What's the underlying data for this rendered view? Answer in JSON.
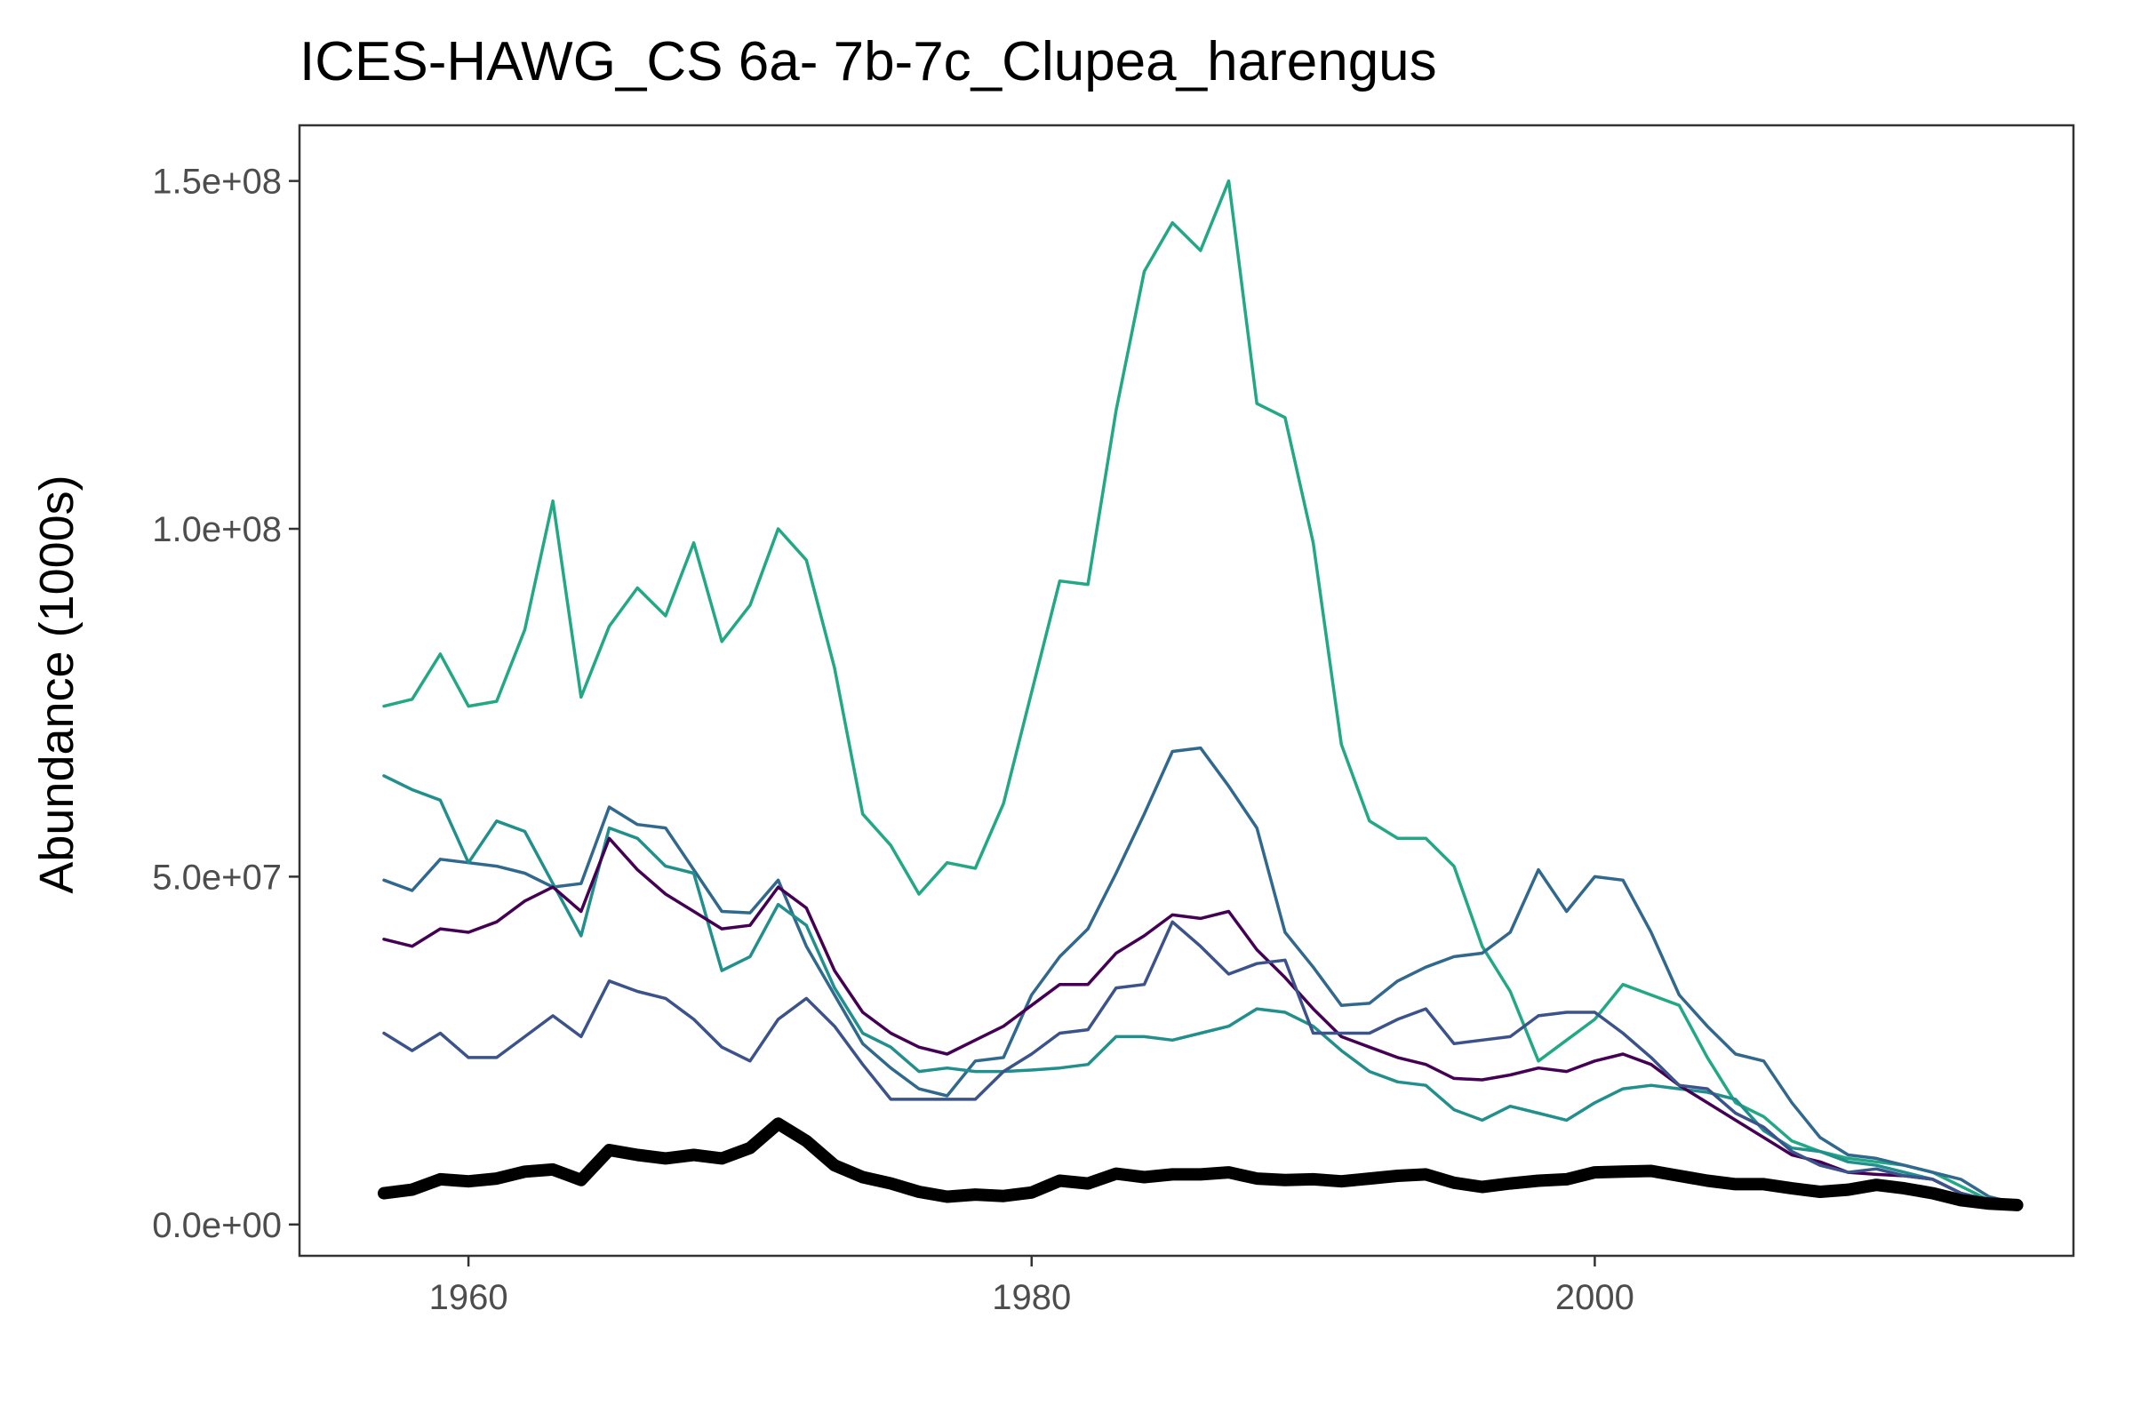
{
  "chart_data": {
    "type": "line",
    "title": "ICES-HAWG_CS 6a- 7b-7c_Clupea_harengus",
    "xlabel": "",
    "ylabel": "Abundance (1000s)",
    "xlim": [
      1954,
      2017
    ],
    "ylim": [
      -4500000,
      158000000
    ],
    "x_ticks": [
      1960,
      1980,
      2000
    ],
    "x_tick_labels": [
      "1960",
      "1980",
      "2000"
    ],
    "y_ticks": [
      0,
      50000000,
      100000000,
      150000000
    ],
    "y_tick_labels": [
      "0.0e+00",
      "5.0e+07",
      "1.0e+08",
      "1.5e+08"
    ],
    "grid": false,
    "legend": "none",
    "x": [
      1957,
      1958,
      1959,
      1960,
      1961,
      1962,
      1963,
      1964,
      1965,
      1966,
      1967,
      1968,
      1969,
      1970,
      1971,
      1972,
      1973,
      1974,
      1975,
      1976,
      1977,
      1978,
      1979,
      1980,
      1981,
      1982,
      1983,
      1984,
      1985,
      1986,
      1987,
      1988,
      1989,
      1990,
      1991,
      1992,
      1993,
      1994,
      1995,
      1996,
      1997,
      1998,
      1999,
      2000,
      2001,
      2002,
      2003,
      2004,
      2005,
      2006,
      2007,
      2008,
      2009,
      2010,
      2011,
      2012,
      2013,
      2014,
      2015
    ],
    "series": [
      {
        "color": "#22a884",
        "width": 3.5,
        "values": [
          74500000,
          75500000,
          82000000,
          74500000,
          75200000,
          85500000,
          104000000,
          75800000,
          86000000,
          91500000,
          87500000,
          98000000,
          83800000,
          89000000,
          100000000,
          95500000,
          80000000,
          59000000,
          54500000,
          47500000,
          52000000,
          51200000,
          60500000,
          76500000,
          92500000,
          92000000,
          117000000,
          137000000,
          144000000,
          140000000,
          150000000,
          118000000,
          116000000,
          98000000,
          69000000,
          58000000,
          55500000,
          55500000,
          51500000,
          40000000,
          33500000,
          23500000,
          26500000,
          29500000,
          34500000,
          33000000,
          31500000,
          24000000,
          17500000,
          15500000,
          12000000,
          10500000,
          9500000,
          9000000,
          8500000,
          7500000,
          5500000,
          3500000,
          3000000
        ]
      },
      {
        "color": "#31688e",
        "width": 3.5,
        "values": [
          49500000,
          48000000,
          52500000,
          52000000,
          51500000,
          50500000,
          48500000,
          49000000,
          60000000,
          57500000,
          57000000,
          51000000,
          45000000,
          44800000,
          49500000,
          40000000,
          33000000,
          26000000,
          22500000,
          19500000,
          18500000,
          23500000,
          24000000,
          33000000,
          38500000,
          42500000,
          50500000,
          59000000,
          68000000,
          68500000,
          63000000,
          57000000,
          42000000,
          37000000,
          31500000,
          31800000,
          35000000,
          37000000,
          38500000,
          39000000,
          42000000,
          51000000,
          45000000,
          50000000,
          49500000,
          42000000,
          33000000,
          28500000,
          24500000,
          23500000,
          17500000,
          12500000,
          10000000,
          9500000,
          8500000,
          7500000,
          6500000,
          4000000,
          3000000
        ]
      },
      {
        "color": "#21908c",
        "width": 3.5,
        "values": [
          64500000,
          62500000,
          61000000,
          52000000,
          58000000,
          56500000,
          49000000,
          41500000,
          57000000,
          55500000,
          51500000,
          50500000,
          36500000,
          38500000,
          46000000,
          43000000,
          34000000,
          27500000,
          25500000,
          22000000,
          22500000,
          22000000,
          22000000,
          22200000,
          22500000,
          23000000,
          27000000,
          27000000,
          26500000,
          27500000,
          28500000,
          31000000,
          30500000,
          28500000,
          25000000,
          22000000,
          20500000,
          20000000,
          16500000,
          15000000,
          17000000,
          16000000,
          15000000,
          17500000,
          19500000,
          20000000,
          19500000,
          19000000,
          18000000,
          13500000,
          11000000,
          10500000,
          9000000,
          8500000,
          7500000,
          6500000,
          4500000,
          3500000,
          3000000
        ]
      },
      {
        "color": "#440154",
        "width": 3.5,
        "values": [
          41000000,
          40000000,
          42500000,
          42000000,
          43500000,
          46500000,
          48500000,
          45000000,
          55500000,
          51000000,
          47500000,
          45000000,
          42500000,
          43000000,
          48500000,
          45500000,
          36500000,
          30500000,
          27500000,
          25500000,
          24500000,
          26500000,
          28500000,
          31500000,
          34500000,
          34500000,
          39000000,
          41500000,
          44500000,
          44000000,
          45000000,
          39500000,
          35500000,
          31000000,
          27000000,
          25500000,
          24000000,
          23000000,
          21000000,
          20800000,
          21500000,
          22500000,
          22000000,
          23500000,
          24500000,
          23000000,
          20000000,
          17500000,
          15000000,
          12500000,
          10000000,
          9000000,
          7500000,
          7200000,
          7000000,
          6500000,
          4500000,
          3500000,
          3000000
        ]
      },
      {
        "color": "#3b528b",
        "width": 3.5,
        "values": [
          27500000,
          25000000,
          27500000,
          24000000,
          24000000,
          27000000,
          30000000,
          27000000,
          35000000,
          33500000,
          32500000,
          29500000,
          25500000,
          23500000,
          29500000,
          32500000,
          28500000,
          23000000,
          18000000,
          18000000,
          18000000,
          18000000,
          22000000,
          24500000,
          27500000,
          28000000,
          34000000,
          34500000,
          43500000,
          40000000,
          36000000,
          37500000,
          38000000,
          27500000,
          27500000,
          27500000,
          29500000,
          31000000,
          26000000,
          26500000,
          27000000,
          30000000,
          30500000,
          30500000,
          27500000,
          24000000,
          20000000,
          19500000,
          16000000,
          14000000,
          10500000,
          8500000,
          7500000,
          8000000,
          7000000,
          6500000,
          4500000,
          3500000,
          3000000
        ]
      },
      {
        "color": "#000000",
        "width": 14,
        "values": [
          4500000,
          5000000,
          6500000,
          6200000,
          6600000,
          7600000,
          7900000,
          6400000,
          10700000,
          10000000,
          9500000,
          10000000,
          9500000,
          11000000,
          14500000,
          12000000,
          8500000,
          6800000,
          5900000,
          4700000,
          4000000,
          4300000,
          4100000,
          4600000,
          6300000,
          5900000,
          7300000,
          6800000,
          7200000,
          7200000,
          7500000,
          6600000,
          6400000,
          6500000,
          6200000,
          6600000,
          7000000,
          7200000,
          6000000,
          5400000,
          5900000,
          6300000,
          6500000,
          7500000,
          7600000,
          7700000,
          7000000,
          6300000,
          5800000,
          5800000,
          5200000,
          4700000,
          5000000,
          5700000,
          5200000,
          4500000,
          3500000,
          3000000,
          2800000
        ]
      }
    ]
  }
}
